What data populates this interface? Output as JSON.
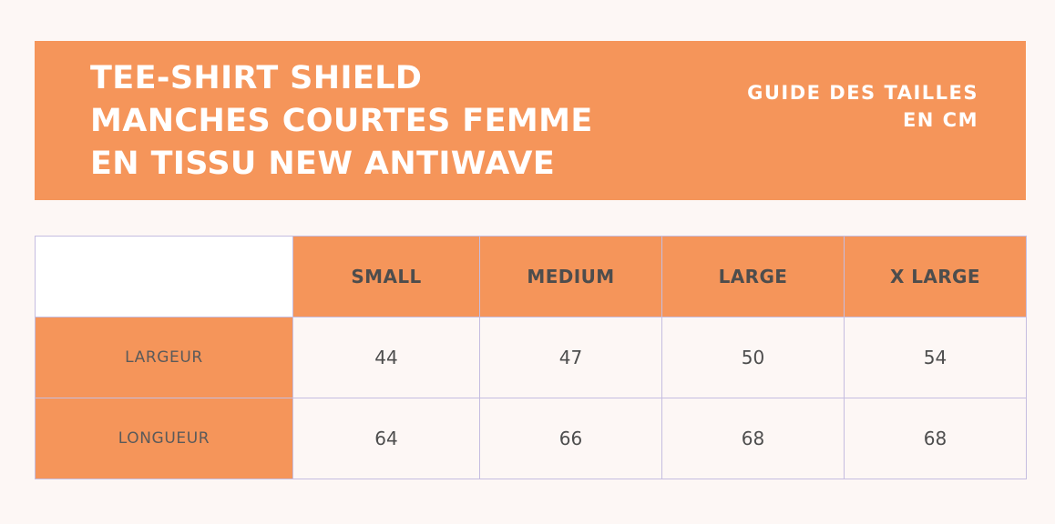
{
  "banner": {
    "title_lines": [
      "TEE-SHIRT SHIELD",
      "MANCHES COURTES FEMME",
      "EN TISSU NEW ANTIWAVE"
    ],
    "subtitle_lines": [
      "GUIDE DES TAILLES",
      "EN CM"
    ]
  },
  "colors": {
    "accent": "#f5955a",
    "background": "#fdf7f5",
    "grid": "#c5bde0",
    "text": "#4d4d4d"
  },
  "table": {
    "columns": [
      "SMALL",
      "MEDIUM",
      "LARGE",
      "X LARGE"
    ],
    "rows": [
      {
        "label": "LARGEUR",
        "values": [
          "44",
          "47",
          "50",
          "54"
        ]
      },
      {
        "label": "LONGUEUR",
        "values": [
          "64",
          "66",
          "68",
          "68"
        ]
      }
    ]
  }
}
